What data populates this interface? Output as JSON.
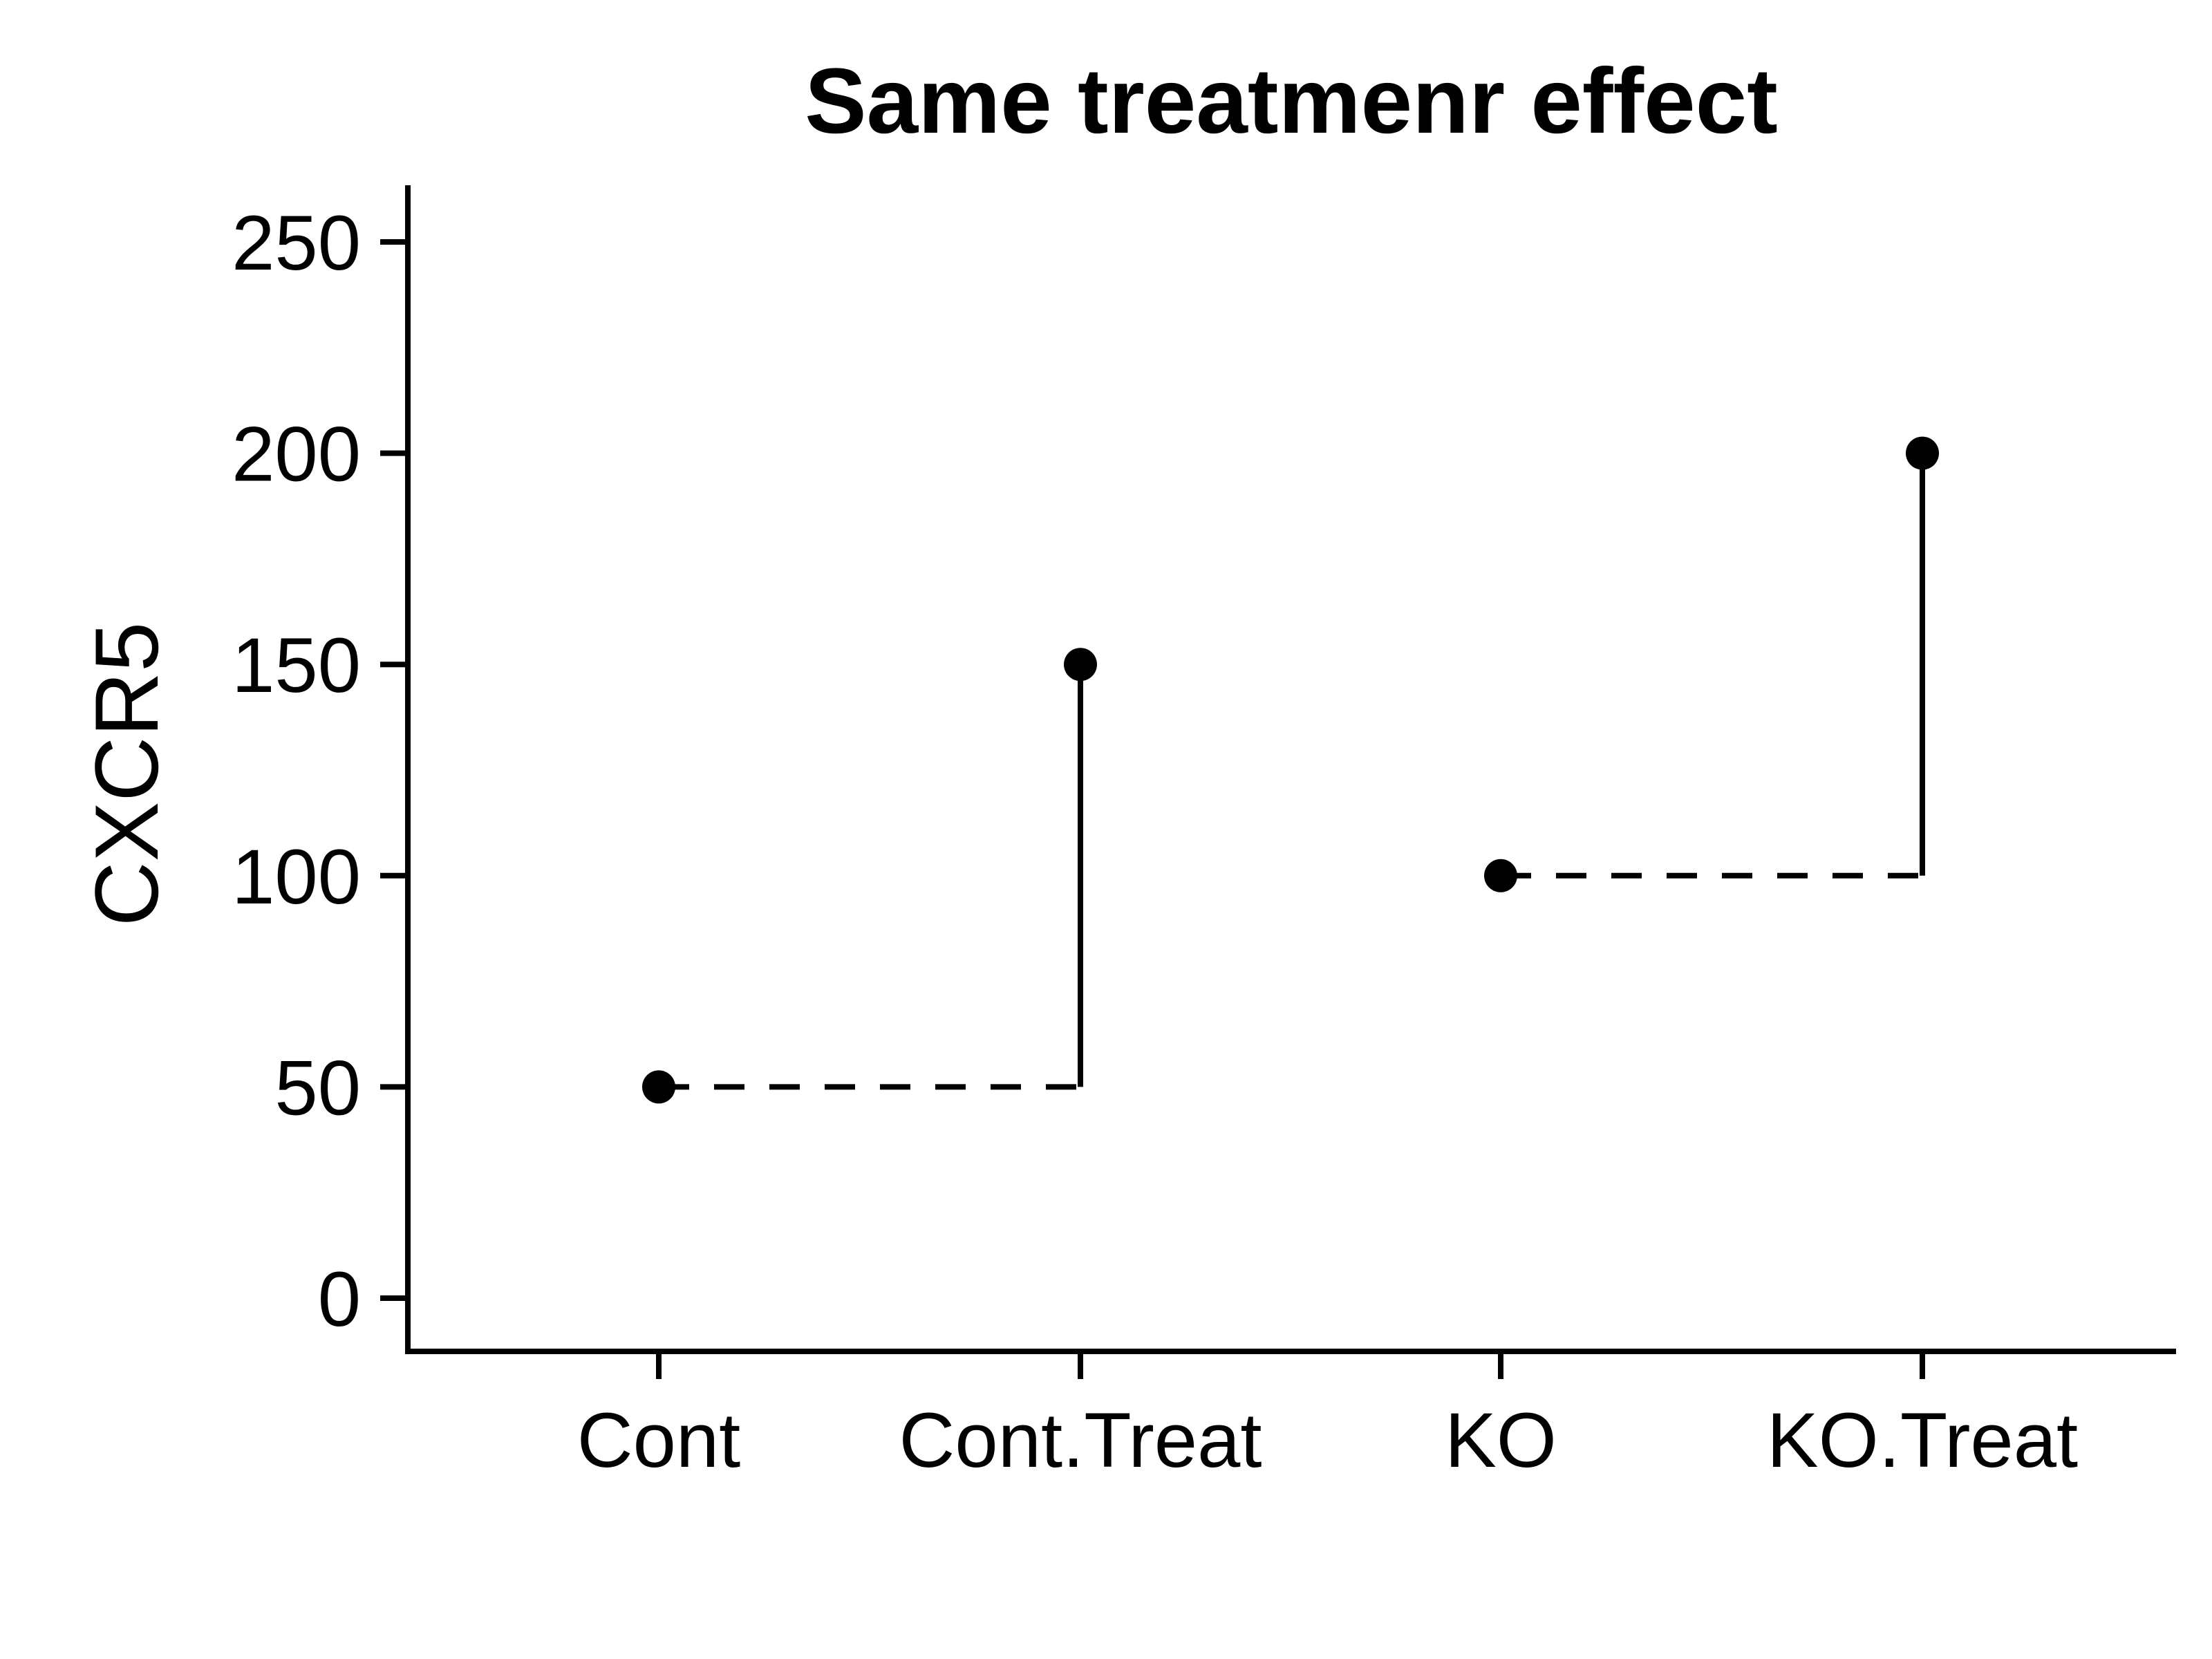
{
  "chart_data": {
    "type": "scatter",
    "title": "Same treatmenr effect",
    "xlabel": "",
    "ylabel": "CXCR5",
    "categories": [
      "Cont",
      "Cont.Treat",
      "KO",
      "KO.Treat"
    ],
    "values": [
      50,
      150,
      100,
      200
    ],
    "ylim": [
      -12,
      262
    ],
    "yticks": [
      0,
      50,
      100,
      150,
      200,
      250
    ],
    "grid": false,
    "legend": "none",
    "connectors": [
      {
        "from": "Cont",
        "to": "Cont.Treat",
        "baseline": 50,
        "target": 150
      },
      {
        "from": "KO",
        "to": "KO.Treat",
        "baseline": 100,
        "target": 200
      }
    ],
    "colors": {
      "points": "#000000",
      "lines": "#000000",
      "axis": "#000000"
    }
  }
}
